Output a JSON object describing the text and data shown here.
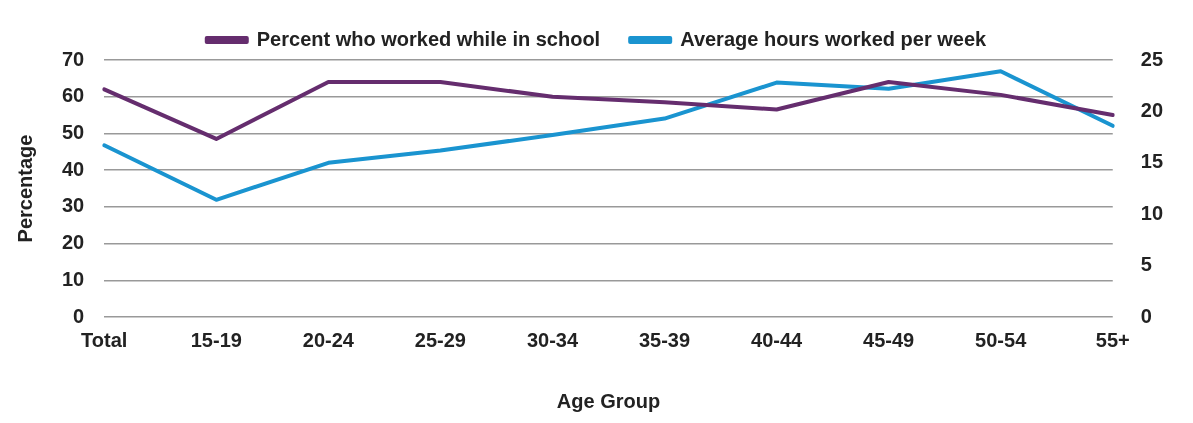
{
  "chart_data": {
    "type": "line",
    "xlabel": "Age Group",
    "ylabel": "Percentage",
    "categories": [
      "Total",
      "15-19",
      "20-24",
      "25-29",
      "30-34",
      "35-39",
      "40-44",
      "45-49",
      "50-54",
      "55+"
    ],
    "series": [
      {
        "name": "Percent who worked while in school",
        "color": "#652d6e",
        "values": [
          62,
          48.5,
          64,
          64,
          60,
          58.5,
          56.5,
          64,
          60.5,
          55
        ]
      },
      {
        "name": "Average hours worked per week",
        "color": "#1a94d0",
        "axis": "y2",
        "values": [
          16.7,
          11.4,
          15,
          16.2,
          17.7,
          19.3,
          22.8,
          22.2,
          23.9,
          18.6
        ]
      }
    ],
    "ylim": [
      0,
      70
    ],
    "yticks": [
      0,
      10,
      20,
      30,
      40,
      50,
      60,
      70
    ],
    "y2lim": [
      0,
      25
    ],
    "y2ticks": [
      0,
      5,
      10,
      15,
      20,
      25
    ],
    "grid": "y",
    "legend": "top",
    "marker": "none",
    "line_style": "solid"
  }
}
